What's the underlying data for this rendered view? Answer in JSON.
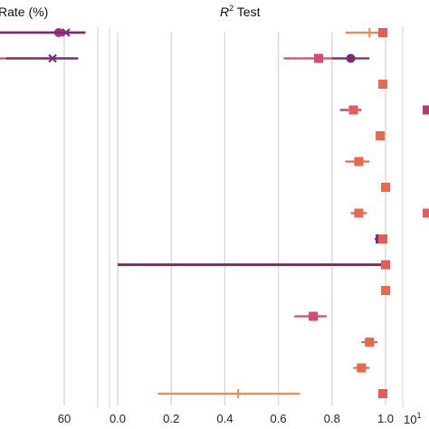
{
  "chart_data": [
    {
      "type": "scatter",
      "title": "Rate (%)",
      "xtick_labels": [
        "60"
      ],
      "series": [
        {
          "row": 0,
          "color": "#e8694e",
          "marker": "dash",
          "x": 0,
          "xerr": [
            0,
            0
          ]
        },
        {
          "row": 0,
          "color": "#a8346a",
          "marker": "circle",
          "x": 48,
          "xerr": [
            0,
            70
          ]
        },
        {
          "row": 0,
          "color": "#7b2a78",
          "marker": "x",
          "x": 54,
          "xerr": [
            0,
            70
          ]
        },
        {
          "row": 1,
          "color": "#b83a6e",
          "marker": "dash",
          "x": 0,
          "xerr": [
            0,
            0
          ]
        },
        {
          "row": 1,
          "color": "#7b2a78",
          "marker": "x",
          "x": 43,
          "xerr": [
            5,
            64
          ]
        }
      ]
    },
    {
      "type": "scatter",
      "title_main": "R",
      "title_sup": "2",
      "title_rest": " Test",
      "xlim": [
        0,
        1
      ],
      "xticks": [
        0.0,
        0.2,
        0.4,
        0.6,
        0.8,
        1.0
      ],
      "xtick_labels": [
        "0.0",
        "0.2",
        "0.4",
        "0.6",
        "0.8",
        "1.0"
      ],
      "rows": 15,
      "points": [
        {
          "row": 0,
          "x": 0.94,
          "lo": 0.85,
          "hi": 0.99,
          "color": "#f08a4b",
          "marker": "plus"
        },
        {
          "row": 0,
          "x": 0.99,
          "lo": 0.98,
          "hi": 1.0,
          "color": "#e65a5a",
          "marker": "square"
        },
        {
          "row": 1,
          "x": 0.75,
          "lo": 0.62,
          "hi": 0.88,
          "color": "#d84a6a",
          "marker": "square"
        },
        {
          "row": 1,
          "x": 0.87,
          "lo": 0.8,
          "hi": 0.94,
          "color": "#7b2a78",
          "marker": "circle"
        },
        {
          "row": 2,
          "x": 0.99,
          "lo": 0.98,
          "hi": 1.0,
          "color": "#e8694e",
          "marker": "square"
        },
        {
          "row": 3,
          "x": 0.88,
          "lo": 0.83,
          "hi": 0.91,
          "color": "#b83a6e",
          "marker": "x"
        },
        {
          "row": 3,
          "x": 0.88,
          "lo": 0.86,
          "hi": 0.9,
          "color": "#e65a5a",
          "marker": "square"
        },
        {
          "row": 4,
          "x": 0.98,
          "lo": 0.97,
          "hi": 0.99,
          "color": "#e8694e",
          "marker": "square"
        },
        {
          "row": 5,
          "x": 0.9,
          "lo": 0.85,
          "hi": 0.94,
          "color": "#e8694e",
          "marker": "square"
        },
        {
          "row": 6,
          "x": 1.0,
          "lo": 0.99,
          "hi": 1.0,
          "color": "#e8694e",
          "marker": "square"
        },
        {
          "row": 7,
          "x": 0.9,
          "lo": 0.87,
          "hi": 0.93,
          "color": "#e8694e",
          "marker": "square"
        },
        {
          "row": 8,
          "x": 0.98,
          "lo": 0.96,
          "hi": 1.0,
          "color": "#7b2a78",
          "marker": "square"
        },
        {
          "row": 8,
          "x": 0.99,
          "lo": 0.98,
          "hi": 1.0,
          "color": "#e65a5a",
          "marker": "square"
        },
        {
          "row": 9,
          "x": 0.0,
          "lo": 0.0,
          "hi": 0.99,
          "color": "#8c2a6a",
          "marker": "none"
        },
        {
          "row": 9,
          "x": 1.0,
          "lo": 0.99,
          "hi": 1.0,
          "color": "#e65a5a",
          "marker": "square"
        },
        {
          "row": 10,
          "x": 1.0,
          "lo": 0.99,
          "hi": 1.0,
          "color": "#e8694e",
          "marker": "square"
        },
        {
          "row": 11,
          "x": 0.73,
          "lo": 0.66,
          "hi": 0.78,
          "color": "#d84a6a",
          "marker": "square"
        },
        {
          "row": 12,
          "x": 0.94,
          "lo": 0.91,
          "hi": 0.97,
          "color": "#e8694e",
          "marker": "square"
        },
        {
          "row": 13,
          "x": 0.91,
          "lo": 0.88,
          "hi": 0.94,
          "color": "#e8694e",
          "marker": "square"
        },
        {
          "row": 14,
          "x": 0.45,
          "lo": 0.15,
          "hi": 0.68,
          "color": "#f08a4b",
          "marker": "plus"
        },
        {
          "row": 14,
          "x": 0.99,
          "lo": 0.98,
          "hi": 1.0,
          "color": "#e65a5a",
          "marker": "square"
        }
      ]
    },
    {
      "type": "scatter",
      "scale": "log",
      "xtick_labels": [
        "10",
        "1"
      ],
      "points": [
        {
          "row": 3,
          "color": "#b83a6e",
          "marker": "square"
        },
        {
          "row": 7,
          "color": "#e65a5a",
          "marker": "square"
        }
      ]
    }
  ]
}
